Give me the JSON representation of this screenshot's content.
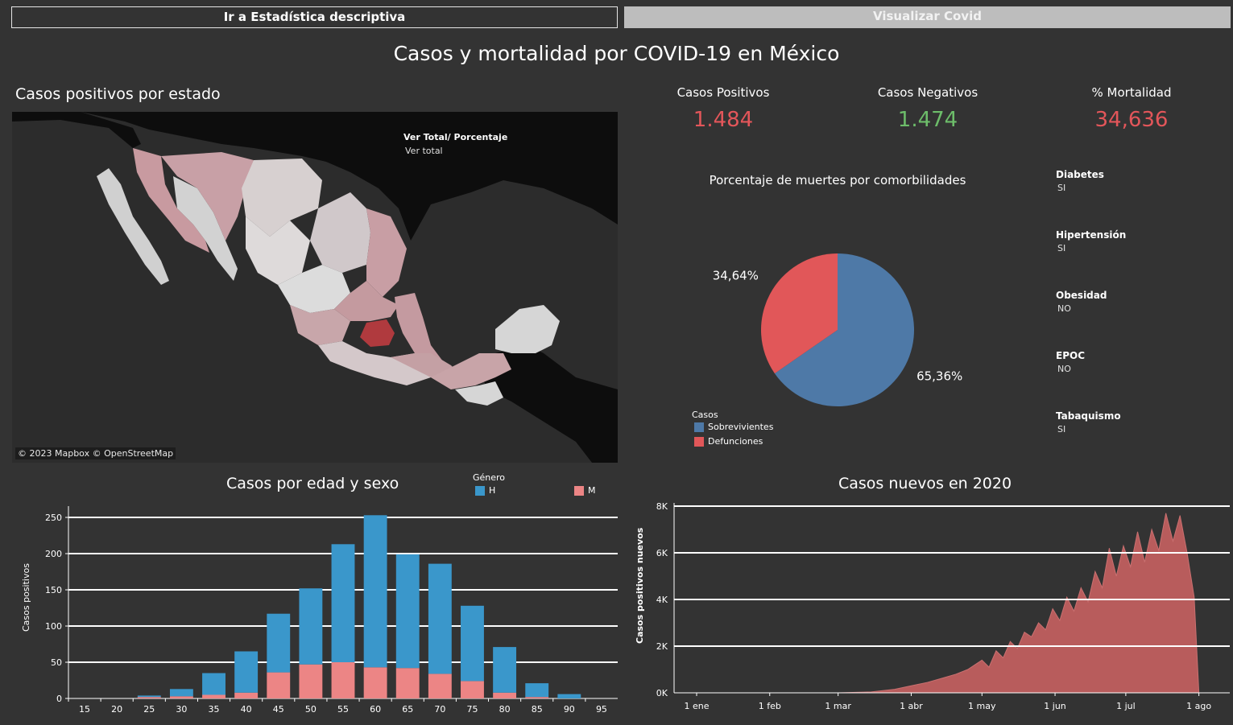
{
  "header": {
    "nav_button_stats": "Ir a Estadística descriptiva",
    "nav_button_covid": "Visualizar Covid",
    "main_title": "Casos y mortalidad por COVID-19 en México"
  },
  "map": {
    "title": "Casos positivos por estado",
    "toggle_label": "Ver Total/ Porcentaje",
    "toggle_value": "Ver total",
    "credit": "© 2023 Mapbox © OpenStreetMap"
  },
  "kpis": {
    "positive_label": "Casos Positivos",
    "positive_value": "1.484",
    "negative_label": "Casos Negativos",
    "negative_value": "1.474",
    "mortality_label": "% Mortalidad",
    "mortality_value": "34,636"
  },
  "filters": [
    {
      "label": "Diabetes",
      "value": "SI"
    },
    {
      "label": "Hipertensión",
      "value": "SI"
    },
    {
      "label": "Obesidad",
      "value": "NO"
    },
    {
      "label": "EPOC",
      "value": "NO"
    },
    {
      "label": "Tabaquismo",
      "value": "SI"
    }
  ],
  "colors": {
    "background": "#333333",
    "male": "#3a97cb",
    "female": "#ec8585",
    "survivors": "#4e79a7",
    "deaths": "#e15759",
    "area": "#b85c5c",
    "kpi_red": "#e3565a",
    "kpi_green": "#6dbd6a"
  },
  "chart_data": [
    {
      "type": "pie",
      "title": "Porcentaje de muertes por comorbilidades",
      "legend_title": "Casos",
      "legend_position": "bottom-left",
      "series": [
        {
          "name": "Sobrevivientes",
          "value": 65.36,
          "label": "65,36%"
        },
        {
          "name": "Defunciones",
          "value": 34.64,
          "label": "34,64%"
        }
      ]
    },
    {
      "type": "bar",
      "title": "Casos por edad y sexo",
      "xlabel": "",
      "ylabel": "Casos positivos",
      "legend_title": "Género",
      "legend_position": "top",
      "categories": [
        "15",
        "20",
        "25",
        "30",
        "35",
        "40",
        "45",
        "50",
        "55",
        "60",
        "65",
        "70",
        "75",
        "80",
        "85",
        "90",
        "95"
      ],
      "series": [
        {
          "name": "H",
          "values": [
            0,
            0,
            2,
            10,
            30,
            57,
            81,
            105,
            163,
            210,
            157,
            152,
            104,
            63,
            19,
            6,
            0
          ]
        },
        {
          "name": "M",
          "values": [
            0,
            0,
            2,
            3,
            5,
            8,
            36,
            47,
            50,
            43,
            42,
            34,
            24,
            8,
            2,
            0,
            0
          ]
        }
      ],
      "ylim": [
        0,
        260
      ],
      "yticks": [
        0,
        50,
        100,
        150,
        200,
        250
      ],
      "stacked": true,
      "grid": true
    },
    {
      "type": "area",
      "title": "Casos nuevos en 2020",
      "xlabel": "",
      "ylabel": "Casos positivos nuevos",
      "ylim": [
        0,
        8000
      ],
      "yticks": [
        0,
        2000,
        4000,
        6000,
        8000
      ],
      "ytick_labels": [
        "0K",
        "2K",
        "4K",
        "6K",
        "8K"
      ],
      "xtick_labels": [
        "1 ene",
        "1 feb",
        "1 mar",
        "1 abr",
        "1 may",
        "1 jun",
        "1 jul",
        "1 ago"
      ],
      "xtick_dates": [
        "2020-01-01",
        "2020-02-01",
        "2020-03-01",
        "2020-04-01",
        "2020-05-01",
        "2020-06-01",
        "2020-07-01",
        "2020-08-01"
      ],
      "grid": true,
      "points": [
        [
          "2020-03-01",
          0
        ],
        [
          "2020-03-15",
          40
        ],
        [
          "2020-03-25",
          150
        ],
        [
          "2020-04-01",
          300
        ],
        [
          "2020-04-08",
          450
        ],
        [
          "2020-04-15",
          650
        ],
        [
          "2020-04-20",
          800
        ],
        [
          "2020-04-25",
          1000
        ],
        [
          "2020-04-28",
          1200
        ],
        [
          "2020-05-01",
          1400
        ],
        [
          "2020-05-04",
          1100
        ],
        [
          "2020-05-07",
          1800
        ],
        [
          "2020-05-10",
          1500
        ],
        [
          "2020-05-13",
          2200
        ],
        [
          "2020-05-16",
          1900
        ],
        [
          "2020-05-19",
          2600
        ],
        [
          "2020-05-22",
          2400
        ],
        [
          "2020-05-25",
          3000
        ],
        [
          "2020-05-28",
          2700
        ],
        [
          "2020-05-31",
          3600
        ],
        [
          "2020-06-03",
          3100
        ],
        [
          "2020-06-06",
          4100
        ],
        [
          "2020-06-09",
          3500
        ],
        [
          "2020-06-12",
          4500
        ],
        [
          "2020-06-15",
          3900
        ],
        [
          "2020-06-18",
          5200
        ],
        [
          "2020-06-21",
          4500
        ],
        [
          "2020-06-24",
          6200
        ],
        [
          "2020-06-27",
          5000
        ],
        [
          "2020-06-30",
          6300
        ],
        [
          "2020-07-03",
          5400
        ],
        [
          "2020-07-06",
          6900
        ],
        [
          "2020-07-09",
          5600
        ],
        [
          "2020-07-12",
          7000
        ],
        [
          "2020-07-15",
          6100
        ],
        [
          "2020-07-18",
          7700
        ],
        [
          "2020-07-21",
          6500
        ],
        [
          "2020-07-24",
          7600
        ],
        [
          "2020-07-27",
          6000
        ],
        [
          "2020-07-30",
          4100
        ],
        [
          "2020-08-01",
          0
        ]
      ]
    }
  ]
}
